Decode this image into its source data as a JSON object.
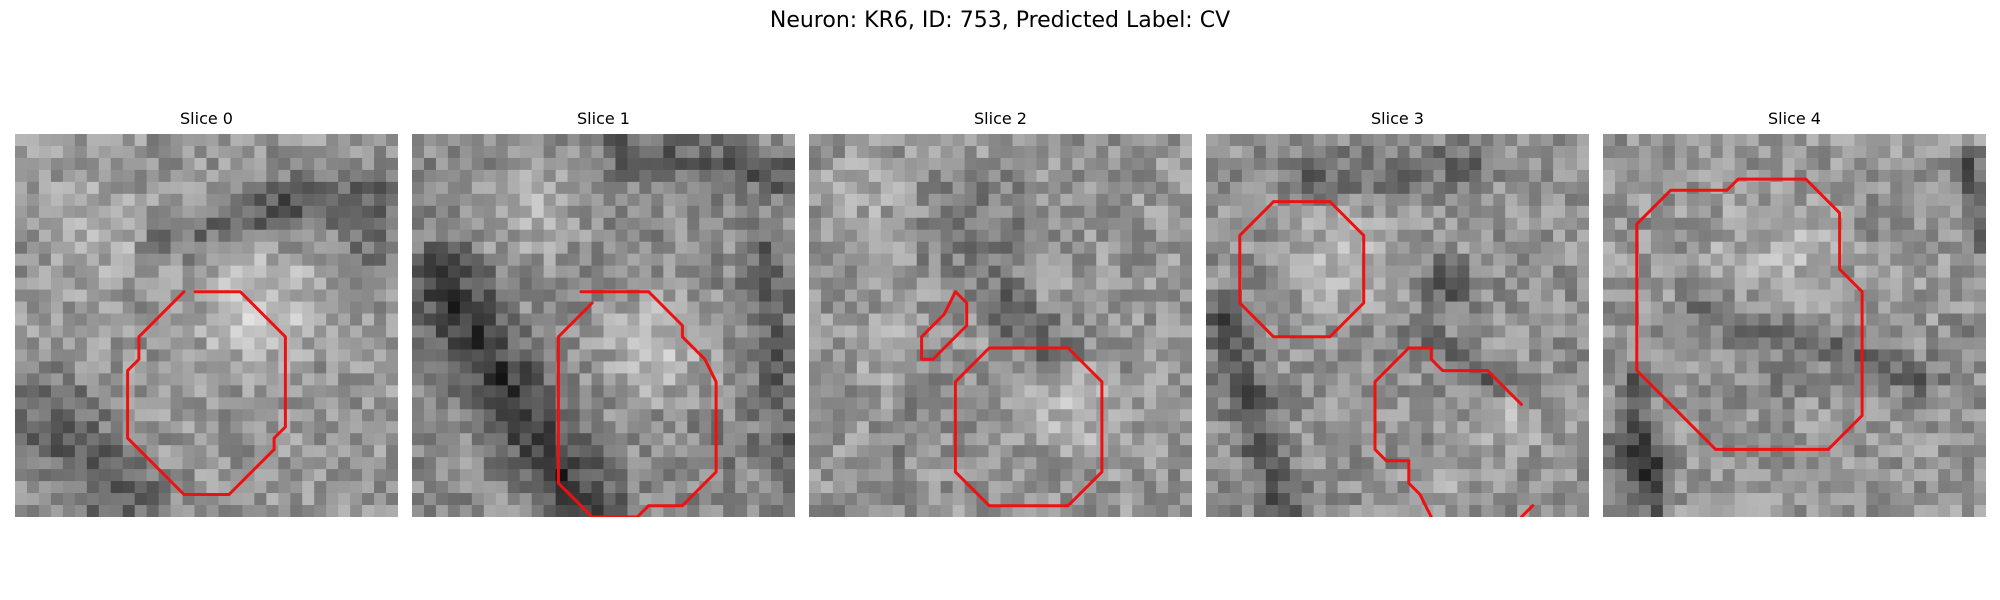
{
  "figure": {
    "title": "Neuron: KR6, ID: 753, Predicted Label: CV",
    "contour_color": "#ee1111"
  },
  "slices": [
    {
      "title": "Slice 0",
      "image": "grayscale EM micrograph patch with a bright rounded cell body outlined in red"
    },
    {
      "title": "Slice 1",
      "image": "grayscale EM micrograph patch with a dark membrane band on the left and a large red outlined cell"
    },
    {
      "title": "Slice 2",
      "image": "grayscale EM micrograph patch with a small red outlined sliver and a lower right red outlined cell"
    },
    {
      "title": "Slice 3",
      "image": "grayscale EM micrograph patch with an upper left red outlined cell and a partial contour at lower right"
    },
    {
      "title": "Slice 4",
      "image": "grayscale EM micrograph patch with a large red outlined region occupying most of the frame"
    }
  ]
}
